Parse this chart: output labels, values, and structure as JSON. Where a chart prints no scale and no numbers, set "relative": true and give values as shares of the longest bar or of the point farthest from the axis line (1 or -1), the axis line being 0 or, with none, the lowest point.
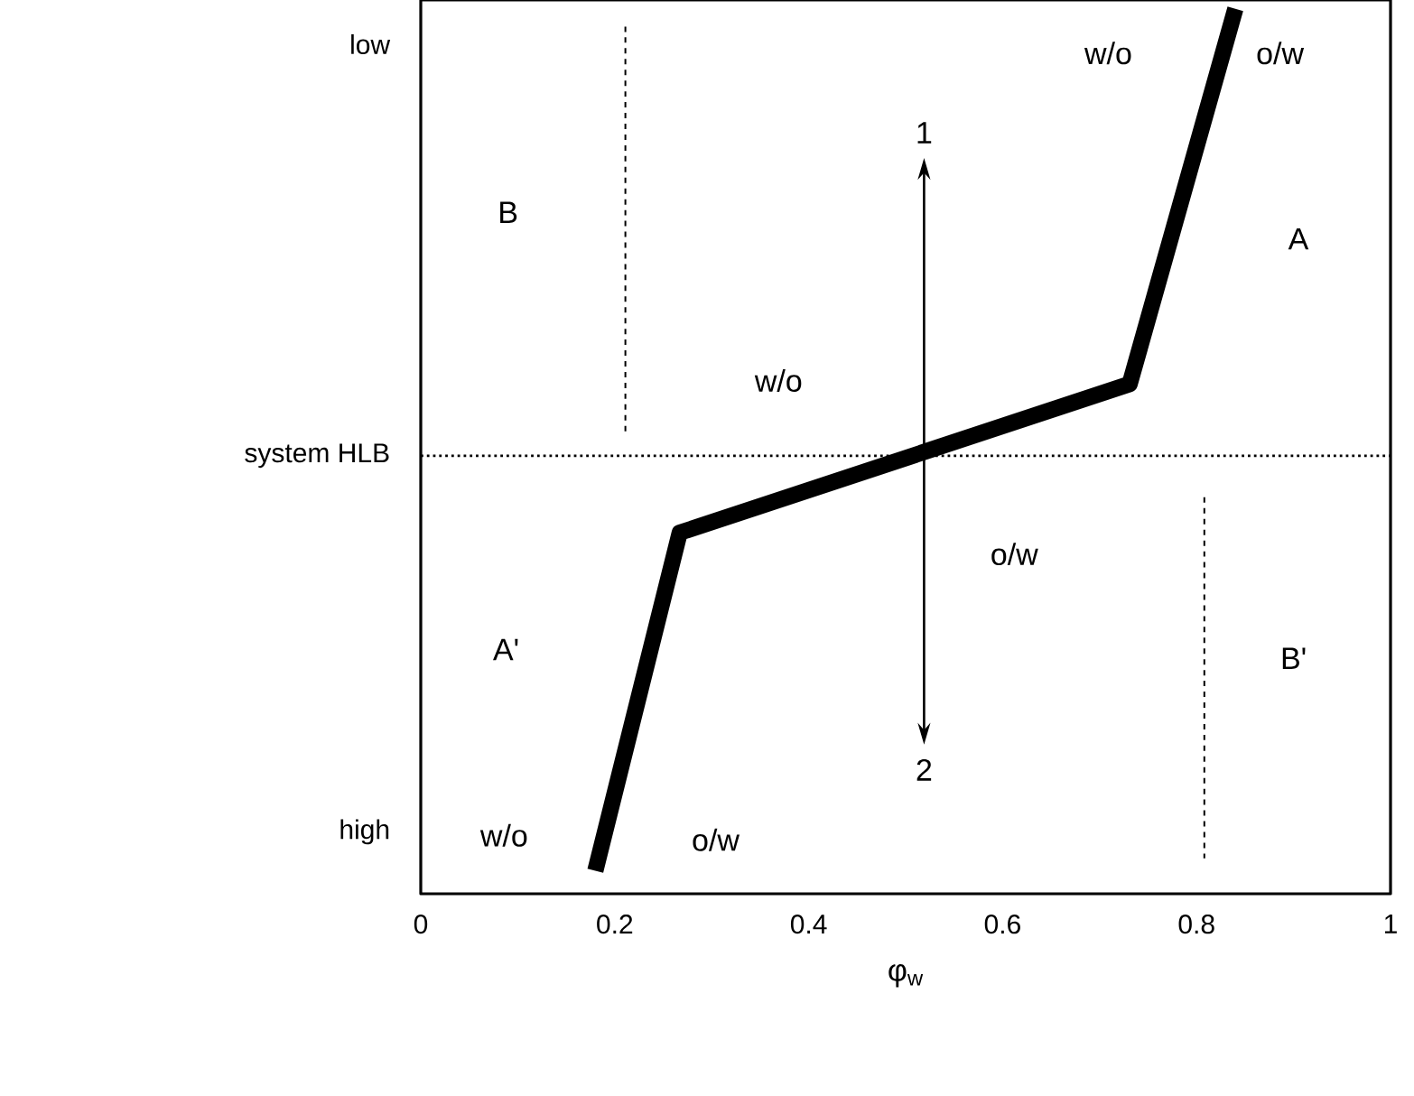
{
  "chart_data": {
    "type": "line",
    "relative": true,
    "xlabel": "φ$_{w}$",
    "xlim": [
      0,
      1
    ],
    "xticks": [
      0,
      0.2,
      0.4,
      0.6,
      0.8,
      1
    ],
    "series": [
      {
        "x": [
          0.18,
          0.267,
          0.731,
          0.84
        ],
        "values": [
          0.026,
          0.408,
          0.576,
          1
        ],
        "color": "#000000",
        "line_style": "solid"
      },
      {
        "x": [
          0.211,
          0.211
        ],
        "values": [
          0.98,
          0.52
        ],
        "color": "#000000",
        "line_style": "dashed"
      },
      {
        "x": [
          0.808,
          0.808
        ],
        "values": [
          0.448,
          0.04
        ],
        "color": "#000000",
        "line_style": "dashed"
      }
    ],
    "ref_lines": [
      {
        "axis": "y",
        "value": 0.495,
        "color": "#000000",
        "line_style": "dotted"
      }
    ],
    "annotations": [
      "low",
      "system HLB",
      "high",
      "w/o",
      "o/w",
      "B",
      "A",
      "w/o",
      "o/w",
      "A'",
      "B'",
      "w/o",
      "o/w",
      "1",
      "2"
    ],
    "grid": false,
    "marker": "none"
  }
}
